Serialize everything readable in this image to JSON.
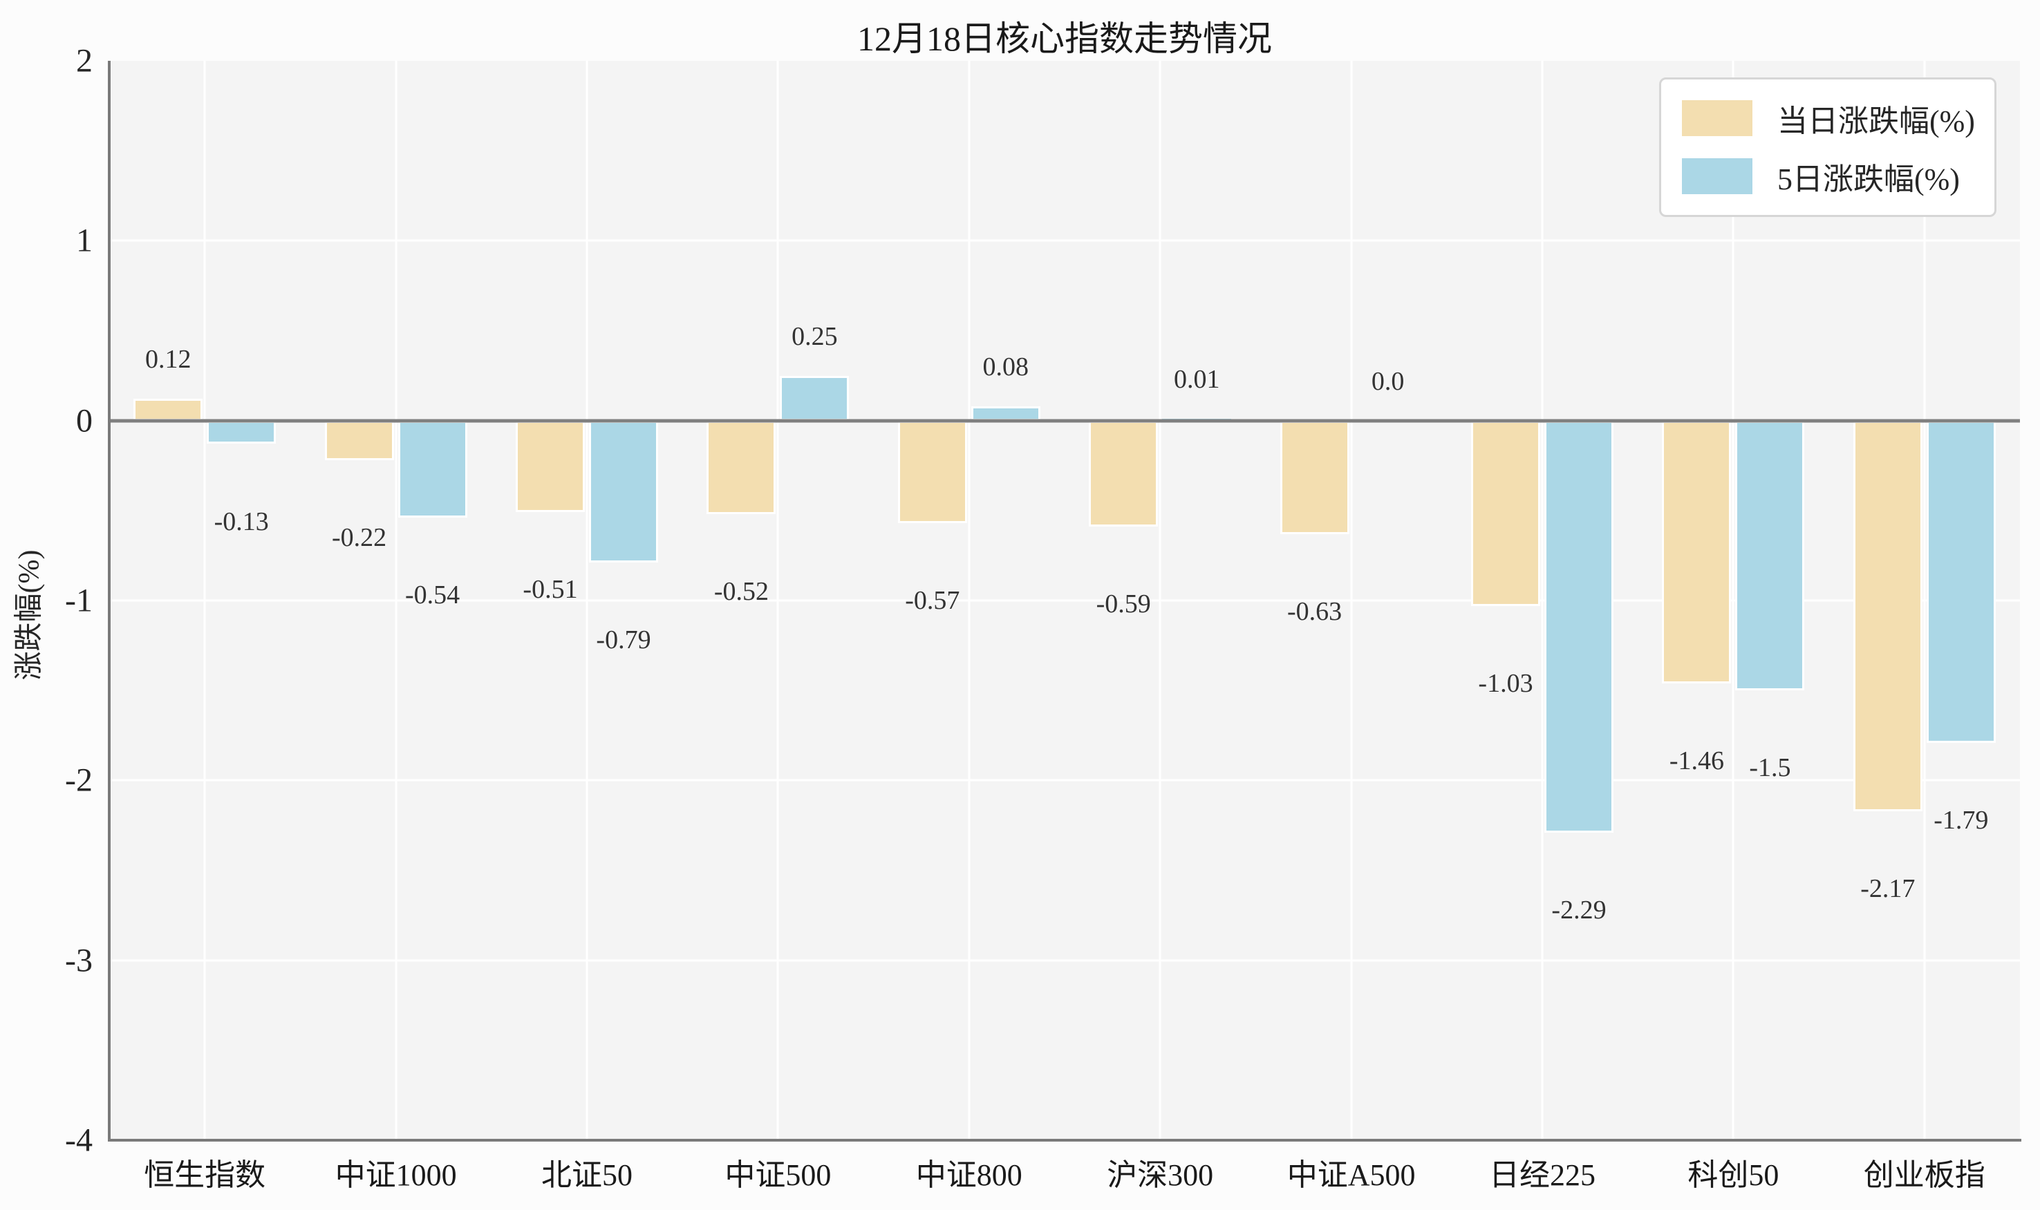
{
  "chart_data": {
    "type": "bar",
    "title": "12月18日核心指数走势情况",
    "xlabel": "",
    "ylabel": "涨跌幅(%)",
    "categories": [
      "恒生指数",
      "中证1000",
      "北证50",
      "中证500",
      "中证800",
      "沪深300",
      "中证A500",
      "日经225",
      "科创50",
      "创业板指"
    ],
    "series": [
      {
        "name": "当日涨跌幅(%)",
        "color": "#f3deb0",
        "values": [
          0.12,
          -0.22,
          -0.51,
          -0.52,
          -0.57,
          -0.59,
          -0.63,
          -1.03,
          -1.46,
          -2.17
        ],
        "labels": [
          "0.12",
          "-0.22",
          "-0.51",
          "-0.52",
          "-0.57",
          "-0.59",
          "-0.63",
          "-1.03",
          "-1.46",
          "-2.17"
        ]
      },
      {
        "name": "5日涨跌幅(%)",
        "color": "#abd7e6",
        "values": [
          -0.13,
          -0.54,
          -0.79,
          0.25,
          0.08,
          0.01,
          0.0,
          -2.29,
          -1.5,
          -1.79
        ],
        "labels": [
          "-0.13",
          "-0.54",
          "-0.79",
          "0.25",
          "0.08",
          "0.01",
          "0.0",
          "-2.29",
          "-1.5",
          "-1.79"
        ]
      }
    ],
    "ylim": [
      -4,
      2
    ],
    "y_ticks": [
      2,
      1,
      0,
      -1,
      -2,
      -3,
      -4
    ],
    "y_tick_labels": [
      "2",
      "1",
      "0",
      "-1",
      "-2",
      "-3",
      "-4"
    ],
    "grid": true,
    "legend_position": "upper right",
    "colors": {
      "plot_background": "#f4f4f4",
      "figure_background": "#fcfcfc",
      "gridline": "#ffffff",
      "zero_line": "#7f7f7f",
      "bar_edge": "#ffffff",
      "text": "#262626"
    }
  }
}
